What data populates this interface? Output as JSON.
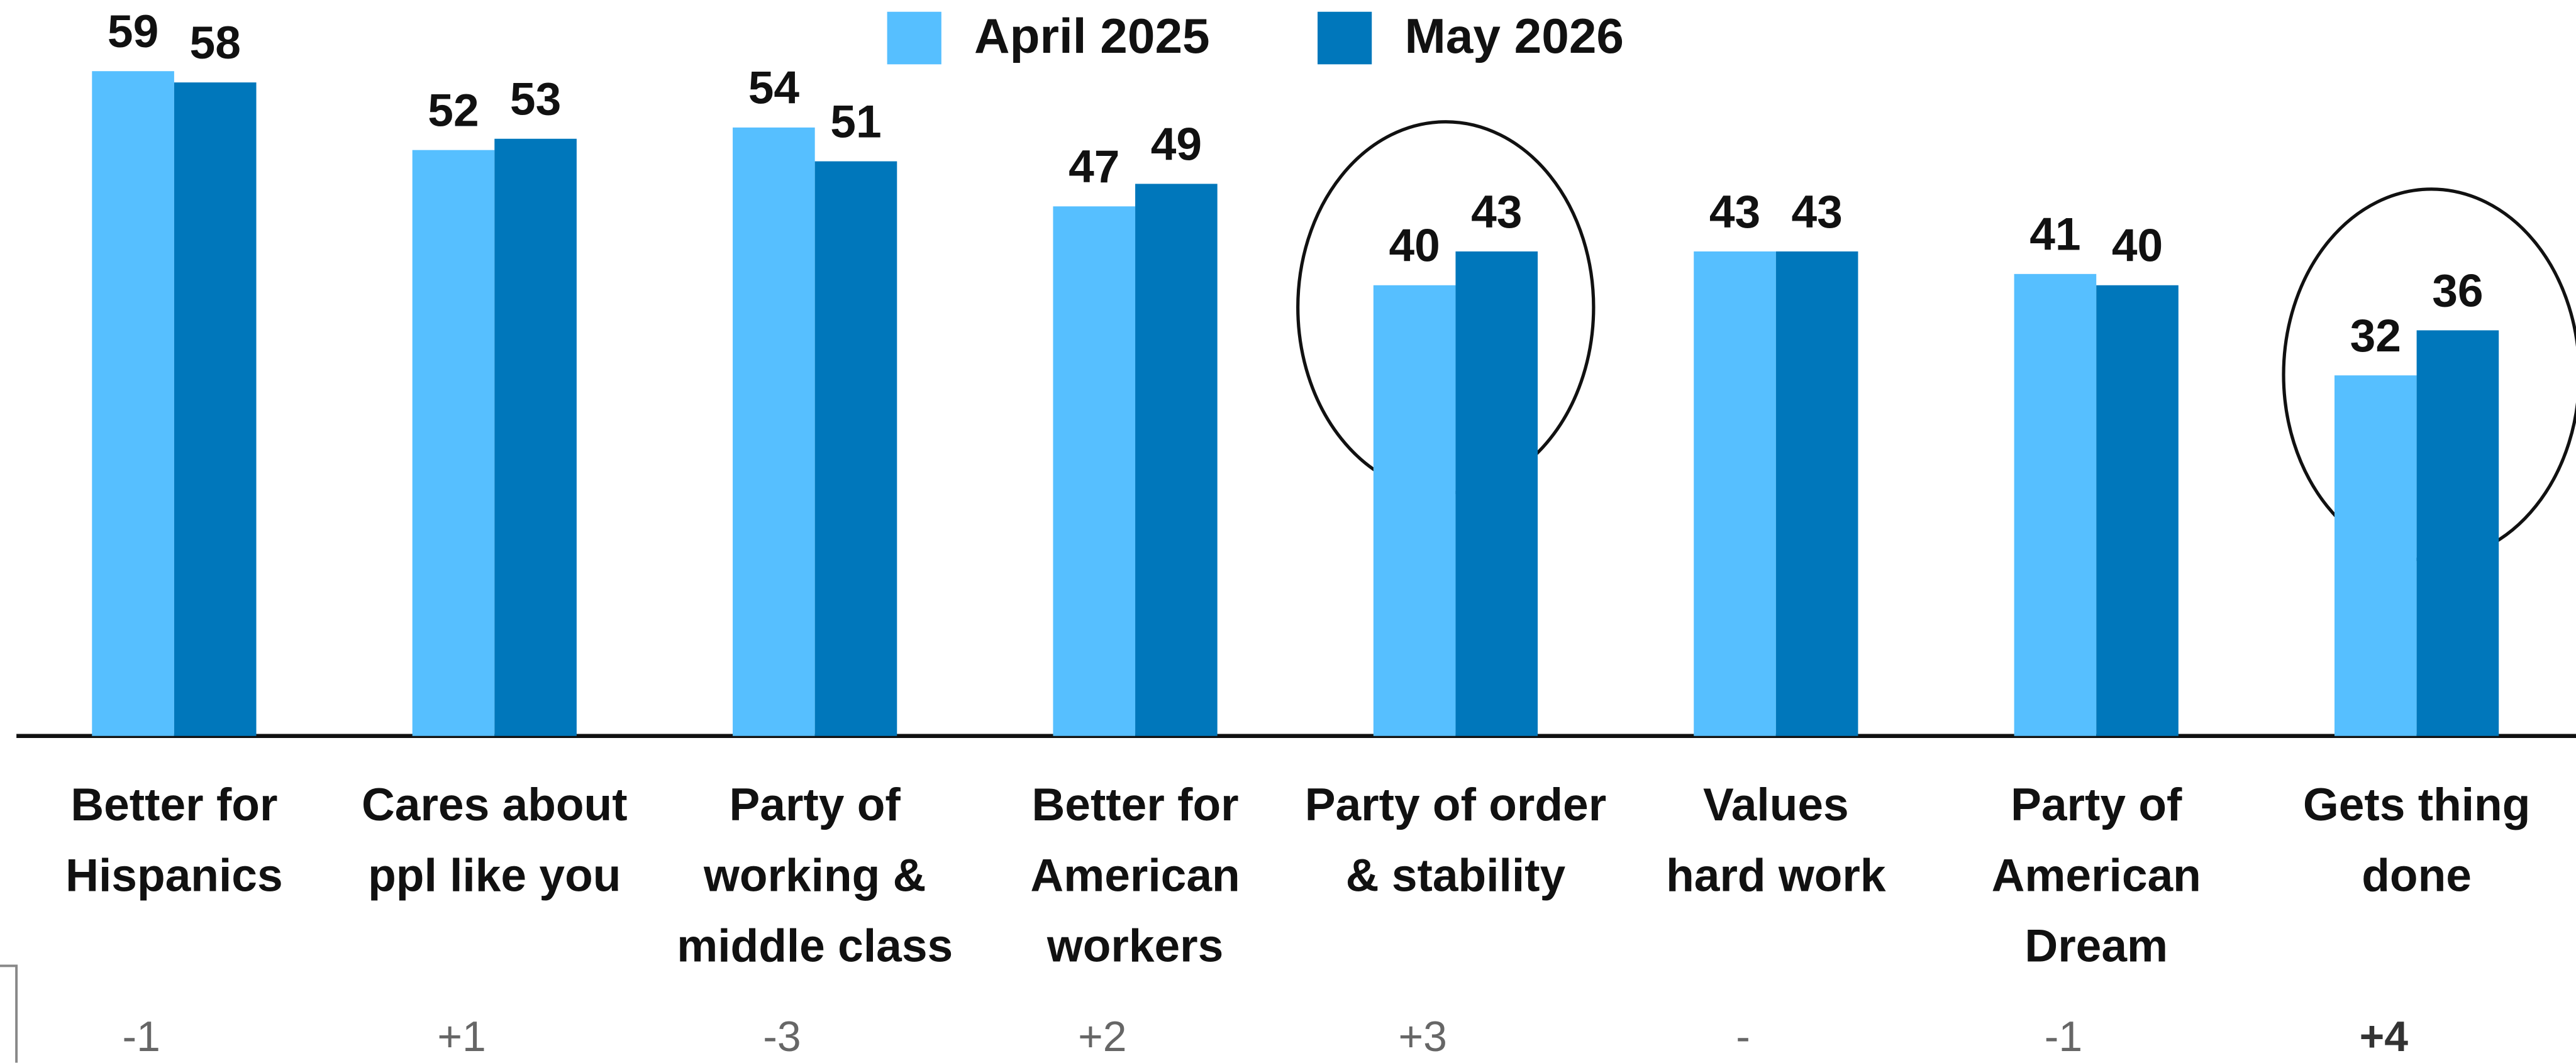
{
  "chart_data": {
    "type": "bar",
    "categories": [
      [
        "Better for",
        "Hispanics"
      ],
      [
        "Cares about",
        "ppl like you"
      ],
      [
        "Party of",
        "working &",
        "middle class"
      ],
      [
        "Better for",
        "American",
        "workers"
      ],
      [
        "Party of order",
        "& stability"
      ],
      [
        "Values",
        "hard work"
      ],
      [
        "Party of",
        "American",
        "Dream"
      ],
      [
        "Gets thing",
        "done"
      ]
    ],
    "series": [
      {
        "name": "April 2025",
        "color": "#56bfff",
        "values": [
          59,
          52,
          54,
          47,
          40,
          43,
          41,
          32
        ]
      },
      {
        "name": "May 2026",
        "color": "#0077bb",
        "values": [
          58,
          53,
          51,
          49,
          43,
          43,
          40,
          36
        ]
      }
    ],
    "change_labels": [
      "-1",
      "+1",
      "-3",
      "+2",
      "+3",
      "-",
      "-1",
      "+4"
    ],
    "ylim": [
      0,
      65
    ],
    "grid": false,
    "legend": "top"
  }
}
